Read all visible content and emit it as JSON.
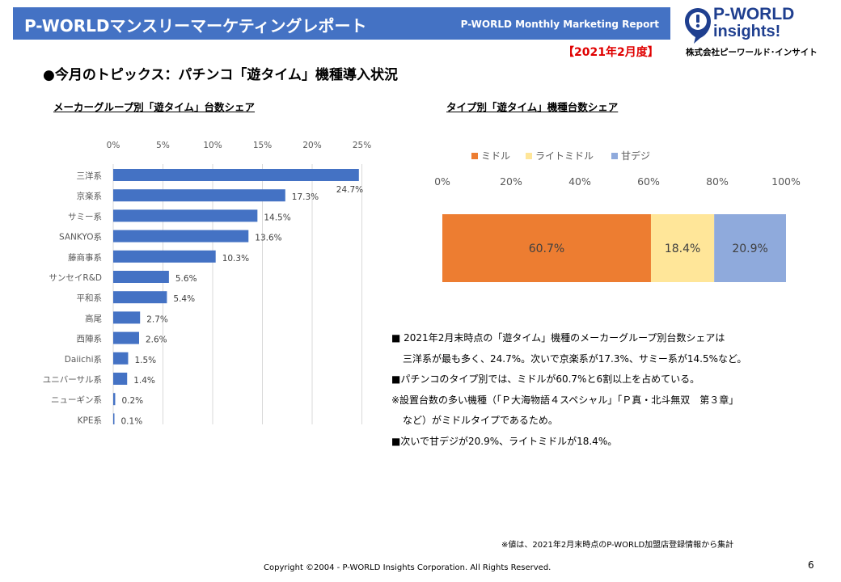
{
  "header": {
    "title": "P-WORLDマンスリーマーケティングレポート",
    "subtitle": "P-WORLD Monthly Marketing Report"
  },
  "logo": {
    "line1": "P-WORLD",
    "line2": "insights!",
    "company": "株式会社ピーワールド･インサイト",
    "colors": {
      "primary": "#1f3f8f"
    }
  },
  "period": "【2021年2月度】",
  "topic": "●今月のトピックス：パチンコ「遊タイム」機種導入状況",
  "chart_left_title": "メーカーグループ別「遊タイム」台数シェア",
  "chart_right_title": "タイプ別「遊タイム」機種台数シェア",
  "chart_data": [
    {
      "type": "bar",
      "orientation": "horizontal",
      "categories": [
        "三洋系",
        "京楽系",
        "サミー系",
        "SANKYO系",
        "藤商事系",
        "サンセイR&D",
        "平和系",
        "高尾",
        "西陣系",
        "Daiichi系",
        "ユニバーサル系",
        "ニューギン系",
        "KPE系"
      ],
      "values": [
        24.7,
        17.3,
        14.5,
        13.6,
        10.3,
        5.6,
        5.4,
        2.7,
        2.6,
        1.5,
        1.4,
        0.2,
        0.1
      ],
      "labels": [
        "24.7%",
        "17.3%",
        "14.5%",
        "13.6%",
        "10.3%",
        "5.6%",
        "5.4%",
        "2.7%",
        "2.6%",
        "1.5%",
        "1.4%",
        "0.2%",
        "0.1%"
      ],
      "xlim": [
        0,
        25
      ],
      "xticks": [
        "0%",
        "5%",
        "10%",
        "15%",
        "20%",
        "25%"
      ],
      "color": "#4472c4",
      "grid": true
    },
    {
      "type": "bar",
      "orientation": "horizontal-stacked-100",
      "series": [
        {
          "name": "ミドル",
          "value": 60.7,
          "label": "60.7%",
          "color": "#ed7d31"
        },
        {
          "name": "ライトミドル",
          "value": 18.4,
          "label": "18.4%",
          "color": "#ffe699"
        },
        {
          "name": "甘デジ",
          "value": 20.9,
          "label": "20.9%",
          "color": "#8faadc"
        }
      ],
      "xlim": [
        0,
        100
      ],
      "xticks": [
        "0%",
        "20%",
        "40%",
        "60%",
        "80%",
        "100%"
      ],
      "legend": "top"
    }
  ],
  "notes": {
    "l1": "■ 2021年2月末時点の「遊タイム」機種のメーカーグループ別台数シェアは",
    "l2": "三洋系が最も多く、24.7%。次いで京楽系が17.3%、サミー系が14.5%など。",
    "l3": "■パチンコのタイプ別では、ミドルが60.7%と6割以上を占めている。",
    "l4": "※設置台数の多い機種（「Ｐ大海物語４スペシャル」「Ｐ真・北斗無双　第３章」",
    "l5": "など）がミドルタイプであるため。",
    "l6": "■次いで甘デジが20.9%、ライトミドルが18.4%。"
  },
  "source_note": "※値は、2021年2月末時点のP-WORLD加盟店登録情報から集計",
  "copyright": "Copyright ©2004 -  P-WORLD Insights Corporation. All Rights Reserved.",
  "page_number": "6"
}
